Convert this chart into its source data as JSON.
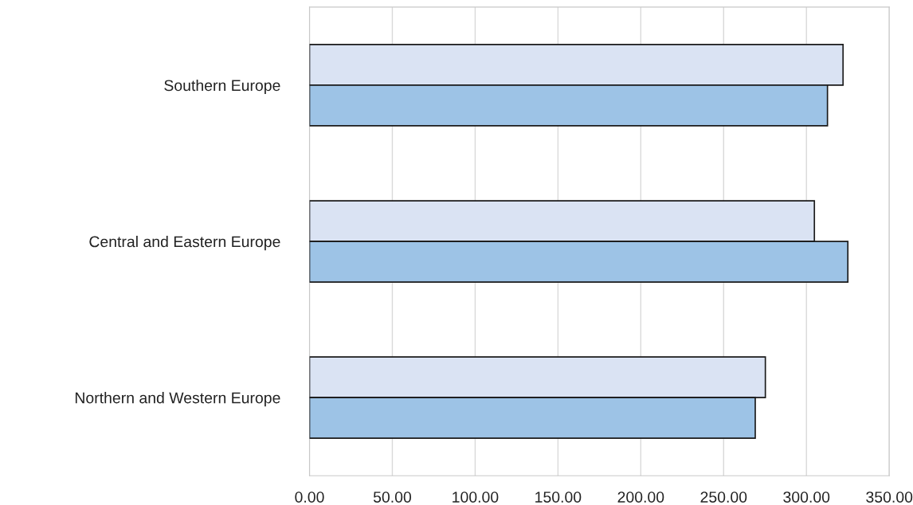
{
  "chart_data": {
    "type": "bar",
    "orientation": "horizontal",
    "categories": [
      "Southern Europe",
      "Central and Eastern Europe",
      "Northern and Western Europe"
    ],
    "series": [
      {
        "color": "#dae3f3",
        "values": [
          322.1,
          304.8,
          275.2
        ]
      },
      {
        "color": "#9dc3e6",
        "values": [
          312.7,
          325.0,
          269.1
        ]
      }
    ],
    "xlim": [
      0,
      350
    ],
    "xticks": [
      {
        "value": 0,
        "label": "0.00"
      },
      {
        "value": 50,
        "label": "50.00"
      },
      {
        "value": 100,
        "label": "100.00"
      },
      {
        "value": 150,
        "label": "150.00"
      },
      {
        "value": 200,
        "label": "200.00"
      },
      {
        "value": 250,
        "label": "250.00"
      },
      {
        "value": 300,
        "label": "300.00"
      },
      {
        "value": 350,
        "label": "350.00"
      }
    ],
    "grid": "x",
    "legend": false
  }
}
